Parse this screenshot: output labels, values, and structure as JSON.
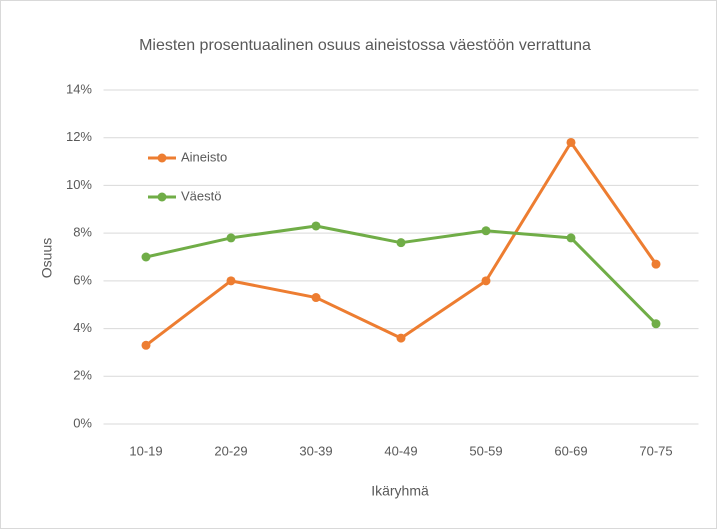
{
  "chart_data": {
    "type": "line",
    "title": "Miesten prosentuaalinen osuus aineistossa väestöön verrattuna",
    "x_label": "Ikäryhmä",
    "y_label": "Osuus",
    "categories": [
      "10-19",
      "20-29",
      "30-39",
      "40-49",
      "50-59",
      "60-69",
      "70-75"
    ],
    "series": [
      {
        "name": "Aineisto",
        "color": "#ed7d31",
        "values": [
          3.3,
          6.0,
          5.3,
          3.6,
          6.0,
          11.8,
          6.7
        ]
      },
      {
        "name": "Väestö",
        "color": "#70ad47",
        "values": [
          7.0,
          7.8,
          8.3,
          7.6,
          8.1,
          7.8,
          4.2
        ]
      }
    ],
    "ylim": [
      0,
      14
    ],
    "yticks": [
      {
        "value": 0,
        "label": "0%"
      },
      {
        "value": 2,
        "label": "2%"
      },
      {
        "value": 4,
        "label": "4%"
      },
      {
        "value": 6,
        "label": "6%"
      },
      {
        "value": 8,
        "label": "8%"
      },
      {
        "value": 10,
        "label": "10%"
      },
      {
        "value": 12,
        "label": "12%"
      },
      {
        "value": 14,
        "label": "14%"
      }
    ],
    "grid": true,
    "legend": "top-left"
  }
}
